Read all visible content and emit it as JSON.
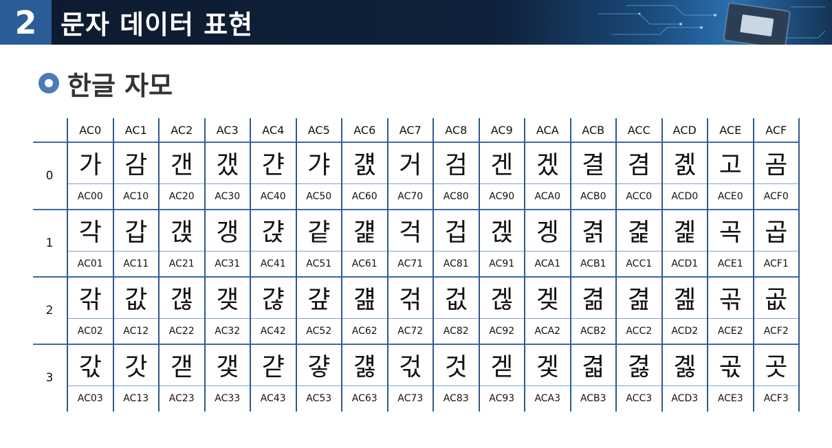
{
  "header": {
    "section_number": "2",
    "section_title": "문자 데이터 표현"
  },
  "subtitle": {
    "icon": "circle-bullet-icon",
    "text": "한글 자모"
  },
  "colors": {
    "header_bg": "#0f213b",
    "section_num_bg": "#2a5c98",
    "grid_line": "#2e5a8c",
    "bullet": "#4a7ab8"
  },
  "table": {
    "columns": [
      "AC0",
      "AC1",
      "AC2",
      "AC3",
      "AC4",
      "AC5",
      "AC6",
      "AC7",
      "AC8",
      "AC9",
      "ACA",
      "ACB",
      "ACC",
      "ACD",
      "ACE",
      "ACF"
    ],
    "rows": [
      {
        "label": "0",
        "glyphs": [
          "가",
          "감",
          "갠",
          "갰",
          "갼",
          "갸",
          "걠",
          "거",
          "검",
          "겐",
          "겠",
          "결",
          "겸",
          "곐",
          "고",
          "곰"
        ],
        "codes": [
          "AC00",
          "AC10",
          "AC20",
          "AC30",
          "AC40",
          "AC50",
          "AC60",
          "AC70",
          "AC80",
          "AC90",
          "ACA0",
          "ACB0",
          "ACC0",
          "ACD0",
          "ACE0",
          "ACF0"
        ]
      },
      {
        "label": "1",
        "glyphs": [
          "각",
          "갑",
          "갡",
          "갱",
          "갽",
          "걑",
          "걡",
          "걱",
          "겁",
          "겑",
          "겡",
          "겱",
          "겵",
          "곑",
          "곡",
          "곱"
        ],
        "codes": [
          "AC01",
          "AC11",
          "AC21",
          "AC31",
          "AC41",
          "AC51",
          "AC61",
          "AC71",
          "AC81",
          "AC91",
          "ACA1",
          "ACB1",
          "ACC1",
          "ACD1",
          "ACE1",
          "ACF1"
        ]
      },
      {
        "label": "2",
        "glyphs": [
          "갂",
          "값",
          "갢",
          "갲",
          "갾",
          "걒",
          "걢",
          "걲",
          "겂",
          "겒",
          "겢",
          "겲",
          "겶",
          "곒",
          "곢",
          "곲"
        ],
        "codes": [
          "AC02",
          "AC12",
          "AC22",
          "AC32",
          "AC42",
          "AC52",
          "AC62",
          "AC72",
          "AC82",
          "AC92",
          "ACA2",
          "ACB2",
          "ACC2",
          "ACD2",
          "ACE2",
          "ACF2"
        ]
      },
      {
        "label": "3",
        "glyphs": [
          "갃",
          "갓",
          "갣",
          "갳",
          "갿",
          "걓",
          "걣",
          "걳",
          "것",
          "겓",
          "겣",
          "겳",
          "겷",
          "곓",
          "곣",
          "곳"
        ],
        "codes": [
          "AC03",
          "AC13",
          "AC23",
          "AC33",
          "AC43",
          "AC53",
          "AC63",
          "AC73",
          "AC83",
          "AC93",
          "ACA3",
          "ACB3",
          "ACC3",
          "ACD3",
          "ACE3",
          "ACF3"
        ]
      }
    ]
  }
}
